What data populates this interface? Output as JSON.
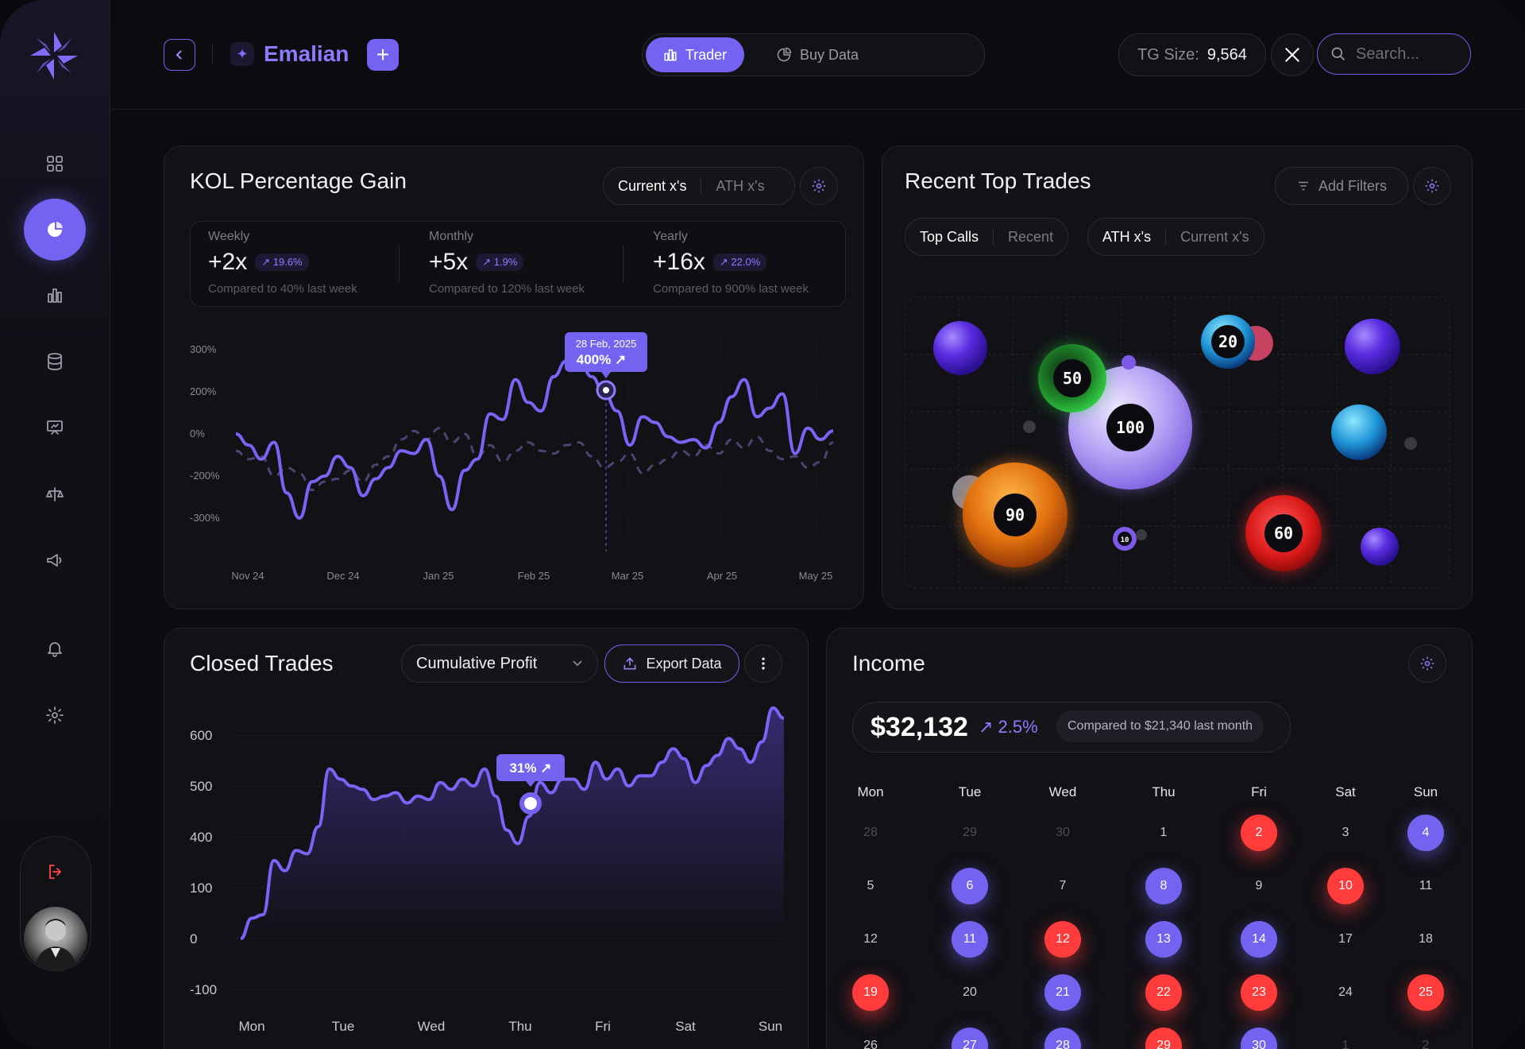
{
  "brand": {
    "name": "Emalian"
  },
  "header": {
    "seg_trader": "Trader",
    "seg_buydata": "Buy Data",
    "tg_label": "TG Size:",
    "tg_value": "9,564",
    "search_placeholder": "Search..."
  },
  "sidebar": {
    "items": [
      "dashboard",
      "analytics",
      "bar-chart",
      "database",
      "presentation",
      "scale",
      "megaphone",
      "notifications",
      "settings"
    ],
    "active": "analytics"
  },
  "kol": {
    "title": "KOL Percentage Gain",
    "toggle": [
      "Current x's",
      "ATH x's"
    ],
    "stats": [
      {
        "label": "Weekly",
        "value": "+2x",
        "change": "19.6%",
        "compare": "Compared to 40% last week"
      },
      {
        "label": "Monthly",
        "value": "+5x",
        "change": "1.9%",
        "compare": "Compared to 120% last week"
      },
      {
        "label": "Yearly",
        "value": "+16x",
        "change": "22.0%",
        "compare": "Compared to 900% last week"
      }
    ],
    "tooltip_date": "28 Feb, 2025",
    "tooltip_value": "400%"
  },
  "trades": {
    "title": "Recent Top Trades",
    "add_filters": "Add Filters",
    "tabs1": [
      "Top Calls",
      "Recent"
    ],
    "tabs2": [
      "ATH x's",
      "Current x's"
    ],
    "bubbles": [
      "100",
      "90",
      "60",
      "50",
      "20",
      "10"
    ]
  },
  "closed": {
    "title": "Closed Trades",
    "dropdown": "Cumulative Profit",
    "export": "Export Data",
    "tooltip": "31%"
  },
  "income": {
    "title": "Income",
    "amount": "$32,132",
    "change": "2.5%",
    "compare": "Compared to $21,340 last month",
    "weekdays": [
      "Mon",
      "Tue",
      "Wed",
      "Thu",
      "Fri",
      "Sat",
      "Sun"
    ],
    "rows": [
      [
        {
          "d": "28",
          "s": "mut"
        },
        {
          "d": "29",
          "s": "mut"
        },
        {
          "d": "30",
          "s": "mut"
        },
        {
          "d": "1",
          "s": ""
        },
        {
          "d": "2",
          "s": "red"
        },
        {
          "d": "3",
          "s": ""
        },
        {
          "d": "4",
          "s": "pur"
        }
      ],
      [
        {
          "d": "5",
          "s": ""
        },
        {
          "d": "6",
          "s": "pur"
        },
        {
          "d": "7",
          "s": ""
        },
        {
          "d": "8",
          "s": "pur"
        },
        {
          "d": "9",
          "s": ""
        },
        {
          "d": "10",
          "s": "red"
        },
        {
          "d": "11",
          "s": ""
        }
      ],
      [
        {
          "d": "12",
          "s": ""
        },
        {
          "d": "11",
          "s": "pur"
        },
        {
          "d": "12",
          "s": "red"
        },
        {
          "d": "13",
          "s": "pur"
        },
        {
          "d": "14",
          "s": "pur"
        },
        {
          "d": "17",
          "s": ""
        },
        {
          "d": "18",
          "s": ""
        }
      ],
      [
        {
          "d": "19",
          "s": "red"
        },
        {
          "d": "20",
          "s": ""
        },
        {
          "d": "21",
          "s": "pur"
        },
        {
          "d": "22",
          "s": "red"
        },
        {
          "d": "23",
          "s": "red"
        },
        {
          "d": "24",
          "s": ""
        },
        {
          "d": "25",
          "s": "red"
        }
      ],
      [
        {
          "d": "26",
          "s": ""
        },
        {
          "d": "27",
          "s": "pur"
        },
        {
          "d": "28",
          "s": "pur"
        },
        {
          "d": "29",
          "s": "red"
        },
        {
          "d": "30",
          "s": "pur"
        },
        {
          "d": "1",
          "s": "mut"
        },
        {
          "d": "2",
          "s": "mut"
        }
      ]
    ]
  },
  "chart_data": [
    {
      "type": "line",
      "x_ticks": [
        "Nov 24",
        "Dec 24",
        "Jan 25",
        "Feb 25",
        "Mar 25",
        "Apr 25",
        "May 25"
      ],
      "y_ticks": [
        "300%",
        "200%",
        "0%",
        "-200%",
        "-300%"
      ],
      "highlight_tick": "Mar 25",
      "series": [
        {
          "values": [
            0,
            -40,
            -90,
            -30,
            -210,
            -300,
            -170,
            -150,
            -80,
            -120,
            -220,
            -160,
            -120,
            -60,
            -70,
            -20,
            -150,
            -270,
            -130,
            -90,
            70,
            50,
            190,
            110,
            80,
            200,
            255,
            260,
            200,
            140,
            80,
            -40,
            60,
            40,
            -10,
            -30,
            -20,
            -50,
            40,
            130,
            190,
            60,
            90,
            140,
            -70,
            20,
            -20,
            10
          ]
        },
        {
          "values": [
            -60,
            -90,
            -80,
            -150,
            -120,
            -140,
            -200,
            -170,
            -160,
            -130,
            -170,
            -110,
            -80,
            -20,
            10,
            -20,
            20,
            -30,
            0,
            -80,
            -40,
            -100,
            -60,
            -30,
            -60,
            -70,
            -40,
            -30,
            -80,
            -120,
            -100,
            -70,
            -140,
            -110,
            -90,
            -60,
            -80,
            -40,
            -70,
            -20,
            -50,
            -10,
            -60,
            -90,
            -80,
            -120,
            -100,
            -30
          ]
        }
      ]
    },
    {
      "type": "area",
      "x_ticks": [
        "Mon",
        "Tue",
        "Wed",
        "Thu",
        "Fri",
        "Sat",
        "Sun"
      ],
      "y_ticks": [
        "600",
        "500",
        "400",
        "100",
        "0",
        "-100"
      ],
      "series": [
        {
          "values": [
            0,
            60,
            70,
            230,
            200,
            260,
            250,
            330,
            500,
            470,
            450,
            440,
            410,
            420,
            430,
            400,
            420,
            410,
            460,
            440,
            470,
            450,
            500,
            420,
            320,
            280,
            360,
            460,
            430,
            470,
            470,
            440,
            520,
            470,
            500,
            450,
            480,
            480,
            520,
            560,
            530,
            460,
            510,
            540,
            590,
            560,
            520,
            580,
            680,
            650
          ]
        }
      ]
    }
  ]
}
